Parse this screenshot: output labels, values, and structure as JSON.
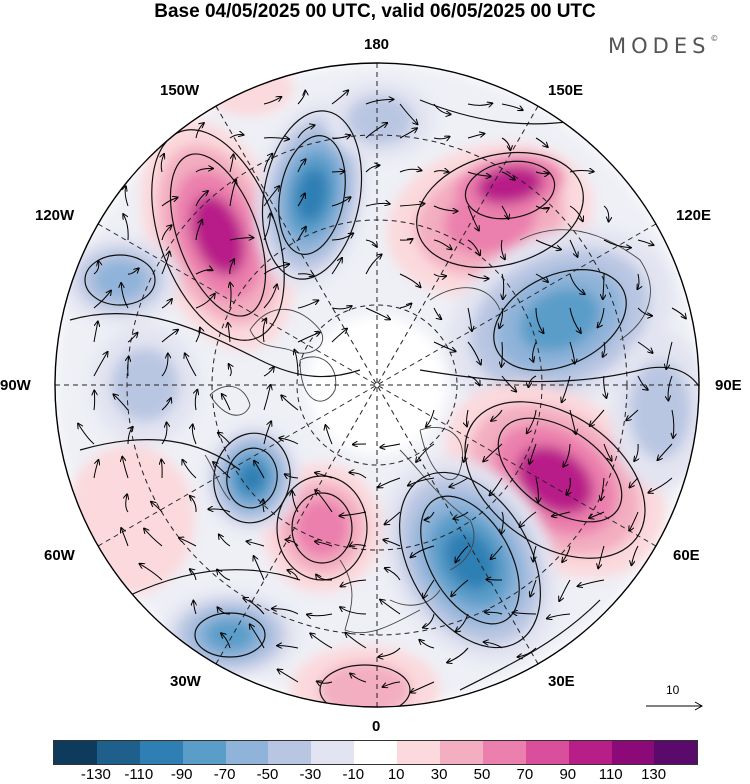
{
  "title": "Base 04/05/2025 00 UTC, valid 06/05/2025 00 UTC",
  "brand": "MODES",
  "brand_mark": "©",
  "longitude_labels": {
    "top": "180",
    "top_left": "150W",
    "top_right": "150E",
    "upper_left": "120W",
    "upper_right": "120E",
    "left": "90W",
    "right": "90E",
    "lower_left": "60W",
    "lower_right": "60E",
    "bottom_left": "30W",
    "bottom_right": "30E",
    "bottom": "0"
  },
  "reference_vector_label": "10",
  "colorbar": {
    "colors": [
      "#0e3a5c",
      "#1f5f8c",
      "#2f7fb4",
      "#5a9dc9",
      "#8fb3d9",
      "#b9c6e2",
      "#e3e4f1",
      "#ffffff",
      "#fbd9dc",
      "#f3aec1",
      "#eb7fad",
      "#d94f9b",
      "#b81e88",
      "#8c0a78",
      "#5a0a6a"
    ],
    "tick_labels": [
      "-130",
      "-110",
      "-90",
      "-70",
      "-50",
      "-30",
      "-10",
      "10",
      "30",
      "50",
      "70",
      "90",
      "110",
      "130"
    ]
  },
  "anomaly_colors": {
    "strong_positive": "#b81e88",
    "positive": "#eb7fad",
    "weak_positive": "#f3aec1",
    "faint_positive": "#fbd9dc",
    "strong_negative": "#2f7fb4",
    "negative": "#5a9dc9",
    "weak_negative": "#8fb3d9",
    "faint_negative": "#b9c6e2",
    "neutral": "#e3e4f1"
  }
}
